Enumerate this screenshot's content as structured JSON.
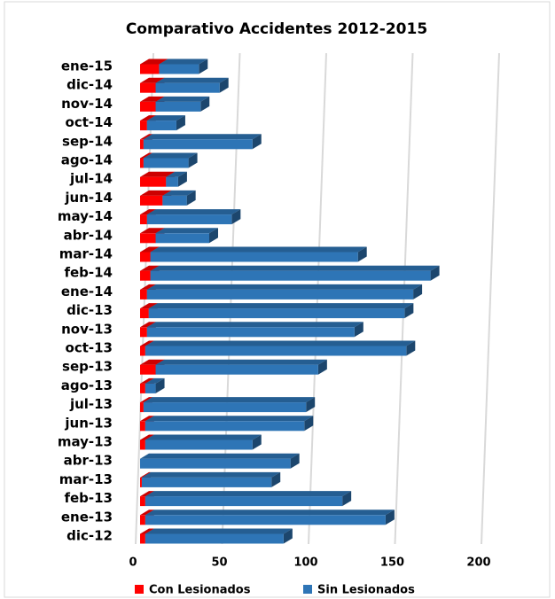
{
  "chart_data": {
    "type": "bar3d_stacked_horizontal",
    "title": "Comparativo Accidentes 2012-2015",
    "categories": [
      "dic-12",
      "ene-13",
      "feb-13",
      "mar-13",
      "abr-13",
      "may-13",
      "jun-13",
      "jul-13",
      "ago-13",
      "sep-13",
      "oct-13",
      "nov-13",
      "dic-13",
      "ene-14",
      "feb-14",
      "mar-14",
      "abr-14",
      "may-14",
      "jun-14",
      "jul-14",
      "ago-14",
      "sep-14",
      "oct-14",
      "nov-14",
      "dic-14",
      "ene-15"
    ],
    "series": [
      {
        "name": "Con Lesionados",
        "color": "#ff0000",
        "values": [
          3,
          3,
          3,
          1,
          0,
          3,
          3,
          2,
          3,
          9,
          3,
          4,
          5,
          4,
          6,
          6,
          9,
          4,
          13,
          15,
          2,
          2,
          4,
          9,
          9,
          11
        ]
      },
      {
        "name": "Sin Lesionados",
        "color": "#2e75b6",
        "values": [
          80,
          139,
          114,
          75,
          87,
          62,
          92,
          94,
          6,
          94,
          151,
          120,
          148,
          154,
          162,
          120,
          31,
          49,
          14,
          7,
          26,
          63,
          17,
          26,
          37,
          23
        ]
      }
    ],
    "xlim": [
      0,
      200
    ],
    "xticks": [
      0,
      50,
      100,
      150,
      200
    ],
    "grid": true,
    "legend": "bottom"
  }
}
